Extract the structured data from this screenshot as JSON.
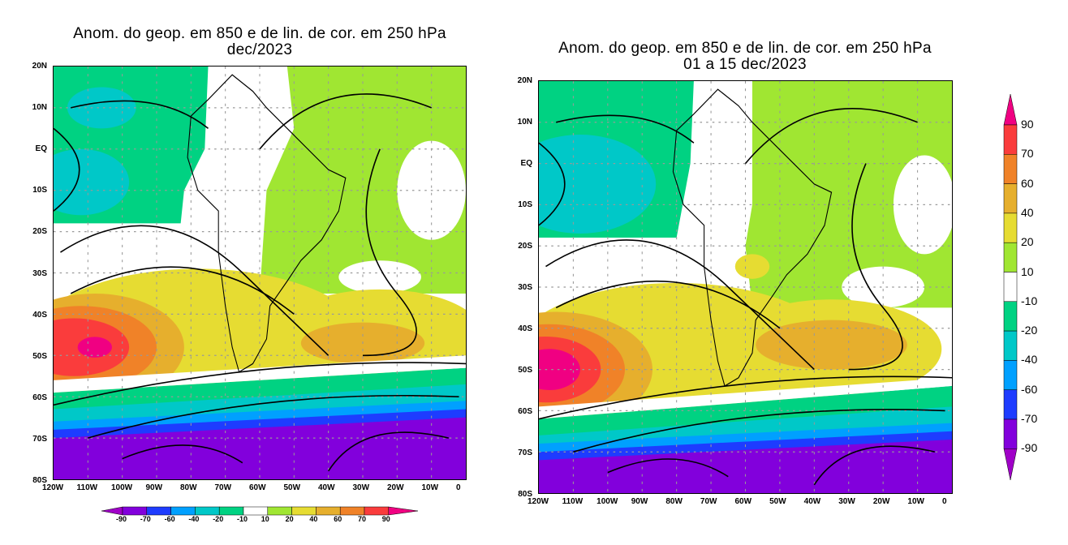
{
  "panels": [
    {
      "title": "Anom. do geop. em 850 e de lin. de cor. em 250 hPa",
      "subtitle": "dec/2023"
    },
    {
      "title": "Anom. do geop. em 850 e de lin. de cor. em 250 hPa",
      "subtitle": "01 a 15 dec/2023"
    }
  ],
  "lon_labels": [
    "120W",
    "110W",
    "100W",
    "90W",
    "80W",
    "70W",
    "60W",
    "50W",
    "40W",
    "30W",
    "20W",
    "10W",
    "0"
  ],
  "lat_labels": [
    "20N",
    "10N",
    "EQ",
    "10S",
    "20S",
    "30S",
    "40S",
    "50S",
    "60S",
    "70S",
    "80S"
  ],
  "colorbar": {
    "labels": [
      "-90",
      "-70",
      "-60",
      "-40",
      "-20",
      "-10",
      "10",
      "20",
      "40",
      "60",
      "70",
      "90"
    ],
    "colors": [
      "#a000c8",
      "#8200dc",
      "#1e3cff",
      "#00a0ff",
      "#00c8c8",
      "#00d282",
      "#ffffff",
      "#a0e632",
      "#e6dc32",
      "#e6af2d",
      "#f08228",
      "#fa3c3c",
      "#f00082"
    ]
  }
}
